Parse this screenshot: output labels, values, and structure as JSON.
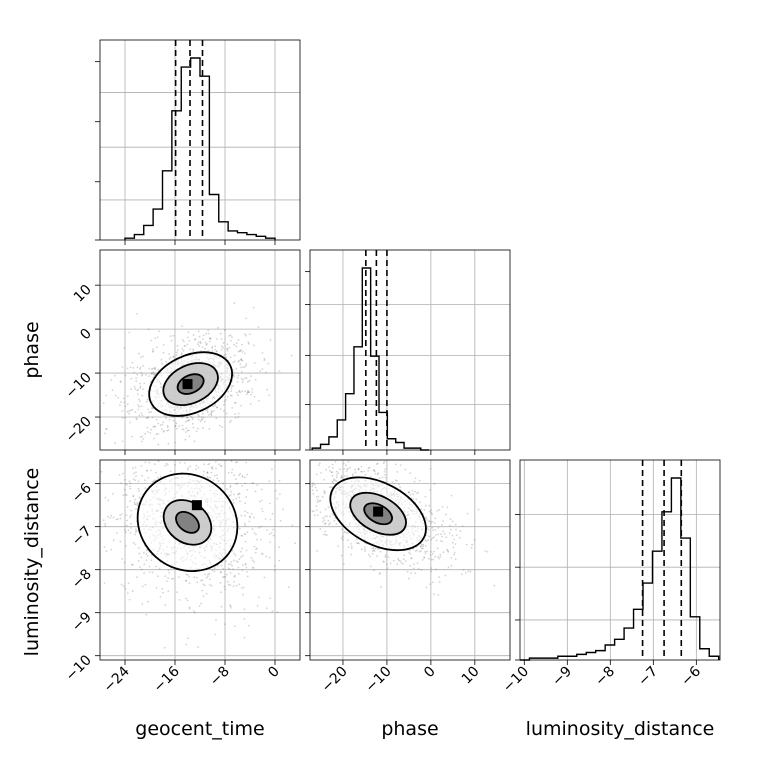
{
  "chart_data": {
    "type": "corner",
    "parameters": [
      "geocent_time",
      "phase",
      "luminosity_distance"
    ],
    "axes": {
      "geocent_time": {
        "range": [
          -28,
          4
        ],
        "ticks": [
          -24,
          -16,
          -8,
          0
        ],
        "tick_labels": [
          "−24",
          "−16",
          "−8",
          "0"
        ]
      },
      "phase": {
        "range": [
          -27.5,
          18
        ],
        "ticks": [
          -20,
          -10,
          0,
          10
        ],
        "tick_labels": [
          "−20",
          "−10",
          "0",
          "10"
        ]
      },
      "phase_x": {
        "range": [
          -27.5,
          18
        ],
        "ticks": [
          -20,
          -10,
          0,
          10
        ],
        "tick_labels": [
          "−20",
          "−10",
          "0",
          "10"
        ]
      },
      "luminosity_distance": {
        "range": [
          -10.1,
          -5.45
        ],
        "ticks": [
          -10,
          -9,
          -8,
          -7,
          -6
        ],
        "tick_labels": [
          "−10",
          "−9",
          "−8",
          "−7",
          "−6"
        ]
      }
    },
    "histograms": {
      "geocent_time": {
        "bin_edges": [
          -24,
          -22.5,
          -21,
          -19.5,
          -18,
          -16.5,
          -15,
          -13.5,
          -12,
          -10.5,
          -9,
          -7.5,
          -6,
          -4.5,
          -3,
          -1.5,
          0
        ],
        "counts": [
          0.01,
          0.03,
          0.08,
          0.17,
          0.38,
          0.71,
          0.95,
          1.0,
          0.9,
          0.25,
          0.1,
          0.05,
          0.04,
          0.03,
          0.02,
          0.01
        ],
        "quantiles": [
          -15.9,
          -13.6,
          -11.6
        ]
      },
      "phase": {
        "bin_edges": [
          -27,
          -25.1,
          -23.2,
          -21.3,
          -19.4,
          -17.5,
          -15.6,
          -13.7,
          -11.8,
          -9.9,
          -8.0,
          -6.1,
          -4.2,
          -2.3,
          -0.4
        ],
        "counts": [
          0.01,
          0.03,
          0.07,
          0.16,
          0.3,
          0.55,
          0.97,
          0.5,
          0.2,
          0.06,
          0.04,
          0.01,
          0.01,
          0.0
        ],
        "quantiles": [
          -14.8,
          -12.4,
          -10.0
        ]
      },
      "luminosity_distance": {
        "bin_edges": [
          -10.1,
          -9.88,
          -9.66,
          -9.44,
          -9.22,
          -9.0,
          -8.78,
          -8.56,
          -8.34,
          -8.12,
          -7.9,
          -7.68,
          -7.46,
          -7.24,
          -7.02,
          -6.8,
          -6.58,
          -6.36,
          -6.14,
          -5.92,
          -5.7,
          -5.48
        ],
        "counts": [
          0.0,
          0.01,
          0.01,
          0.01,
          0.02,
          0.02,
          0.03,
          0.04,
          0.05,
          0.08,
          0.11,
          0.17,
          0.27,
          0.41,
          0.58,
          0.79,
          0.97,
          0.65,
          0.23,
          0.06,
          0.02
        ],
        "quantiles": [
          -7.25,
          -6.75,
          -6.35
        ]
      }
    },
    "contours_2d": {
      "phase_vs_geocent_time": {
        "center": [
          -13.5,
          -12.5
        ],
        "levels": [
          {
            "label": "outer",
            "rx": 7.0,
            "ry": 6.5
          },
          {
            "label": "middle",
            "rx": 4.6,
            "ry": 4.3
          },
          {
            "label": "inner",
            "rx": 2.2,
            "ry": 2.0
          }
        ],
        "peak": [
          -14.0,
          -12.5
        ]
      },
      "luminosity_distance_vs_geocent_time": {
        "center": [
          -14.0,
          -6.9
        ],
        "levels": [
          {
            "label": "outer",
            "rx": 7.5,
            "ry": 1.2
          },
          {
            "label": "middle",
            "rx": 3.2,
            "ry": 0.6
          },
          {
            "label": "inner",
            "rx": 1.4,
            "ry": 0.3
          }
        ],
        "peak": [
          -12.5,
          -6.5
        ]
      },
      "luminosity_distance_vs_phase": {
        "center": [
          -12.0,
          -6.7
        ],
        "levels": [
          {
            "label": "outer",
            "rx": 7.0,
            "ry": 1.2
          },
          {
            "label": "middle",
            "rx": 4.0,
            "ry": 0.7
          },
          {
            "label": "inner",
            "rx": 2.0,
            "ry": 0.35
          }
        ],
        "peak": [
          -12.0,
          -6.65
        ]
      }
    },
    "labels": {
      "geocent_time": "geocent_time",
      "phase": "phase",
      "luminosity_distance": "luminosity_distance"
    },
    "grid": true
  }
}
